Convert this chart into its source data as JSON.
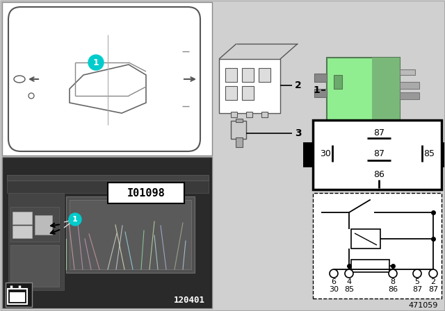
{
  "bg_color": "#d0d0d0",
  "cyan": "#00CCCC",
  "relay_green": "#90EE90",
  "part_number": "471059",
  "photo_label": "120401",
  "io_label": "I01098",
  "circuit_pin_nums": [
    "6",
    "4",
    "8",
    "5",
    "2"
  ],
  "circuit_pin_nums2": [
    "30",
    "85",
    "86",
    "87",
    "87"
  ]
}
